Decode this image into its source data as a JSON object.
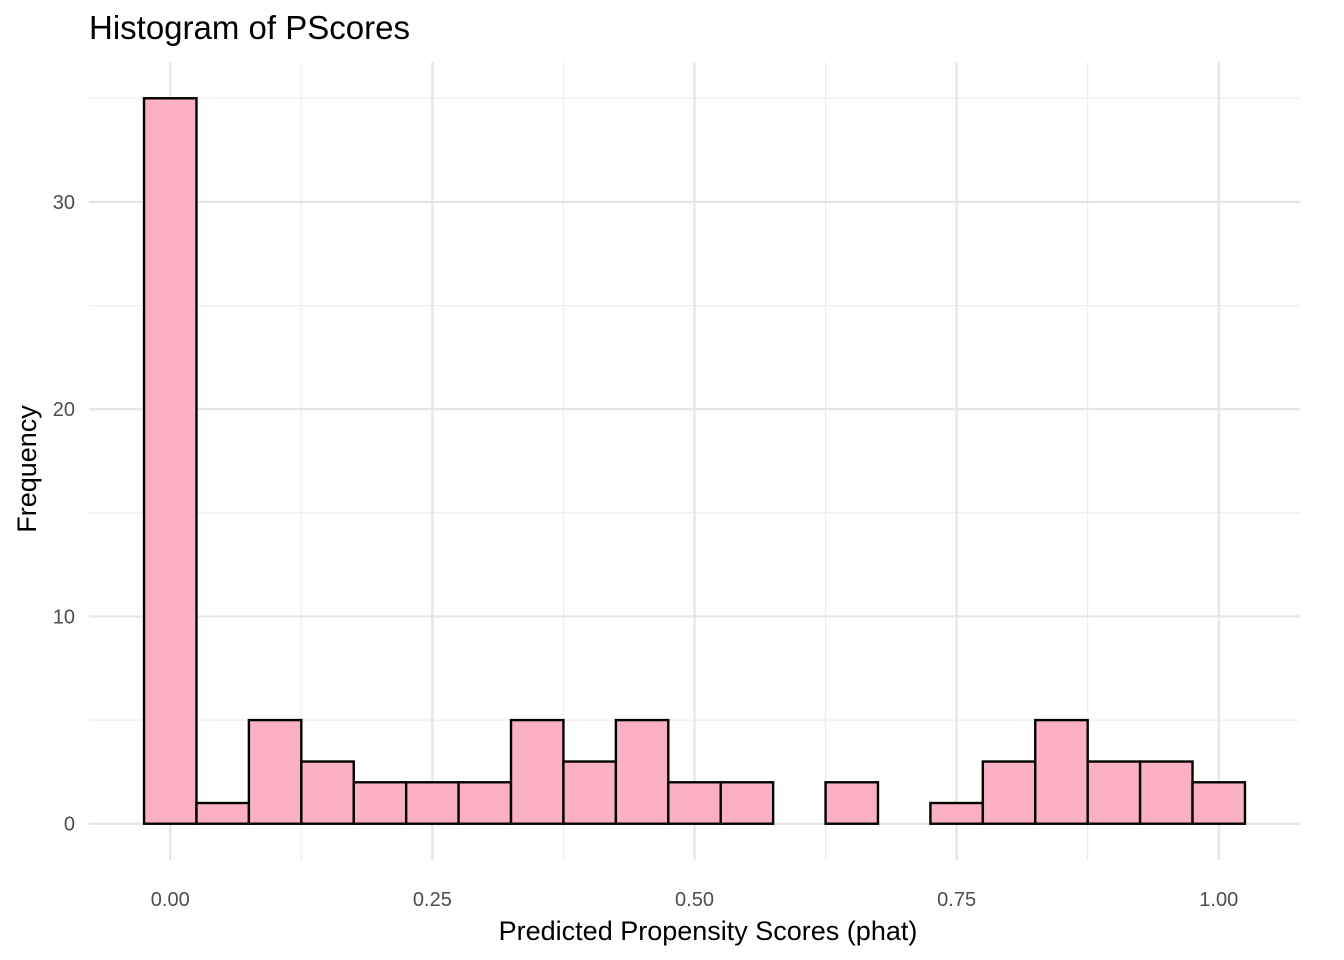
{
  "chart_data": {
    "type": "histogram",
    "title": "Histogram of PScores",
    "xlabel": "Predicted Propensity Scores (phat)",
    "ylabel": "Frequency",
    "bin_width": 0.05,
    "bins": [
      {
        "start": -0.025,
        "end": 0.025,
        "count": 35
      },
      {
        "start": 0.025,
        "end": 0.075,
        "count": 1
      },
      {
        "start": 0.075,
        "end": 0.125,
        "count": 5
      },
      {
        "start": 0.125,
        "end": 0.175,
        "count": 3
      },
      {
        "start": 0.175,
        "end": 0.225,
        "count": 2
      },
      {
        "start": 0.225,
        "end": 0.275,
        "count": 2
      },
      {
        "start": 0.275,
        "end": 0.325,
        "count": 2
      },
      {
        "start": 0.325,
        "end": 0.375,
        "count": 5
      },
      {
        "start": 0.375,
        "end": 0.425,
        "count": 3
      },
      {
        "start": 0.425,
        "end": 0.475,
        "count": 5
      },
      {
        "start": 0.475,
        "end": 0.525,
        "count": 2
      },
      {
        "start": 0.525,
        "end": 0.575,
        "count": 2
      },
      {
        "start": 0.575,
        "end": 0.625,
        "count": 0
      },
      {
        "start": 0.625,
        "end": 0.675,
        "count": 2
      },
      {
        "start": 0.675,
        "end": 0.725,
        "count": 0
      },
      {
        "start": 0.725,
        "end": 0.775,
        "count": 1
      },
      {
        "start": 0.775,
        "end": 0.825,
        "count": 3
      },
      {
        "start": 0.825,
        "end": 0.875,
        "count": 5
      },
      {
        "start": 0.875,
        "end": 0.925,
        "count": 3
      },
      {
        "start": 0.925,
        "end": 0.975,
        "count": 3
      },
      {
        "start": 0.975,
        "end": 1.025,
        "count": 2
      }
    ],
    "xlim": [
      -0.0775,
      1.0775
    ],
    "ylim": [
      -1.75,
      36.75
    ],
    "x_ticks": [
      0.0,
      0.25,
      0.5,
      0.75,
      1.0
    ],
    "x_tick_labels": [
      "0.00",
      "0.25",
      "0.50",
      "0.75",
      "1.00"
    ],
    "y_ticks": [
      0,
      10,
      20,
      30
    ],
    "y_tick_labels": [
      "0",
      "10",
      "20",
      "30"
    ],
    "x_minor_ticks": [
      0.125,
      0.375,
      0.625,
      0.875
    ],
    "y_minor_ticks": [
      5,
      15,
      25,
      35
    ],
    "bar_fill": "#FBB1C3",
    "bar_outline": "#000000",
    "grid": true,
    "theme": "minimal"
  }
}
